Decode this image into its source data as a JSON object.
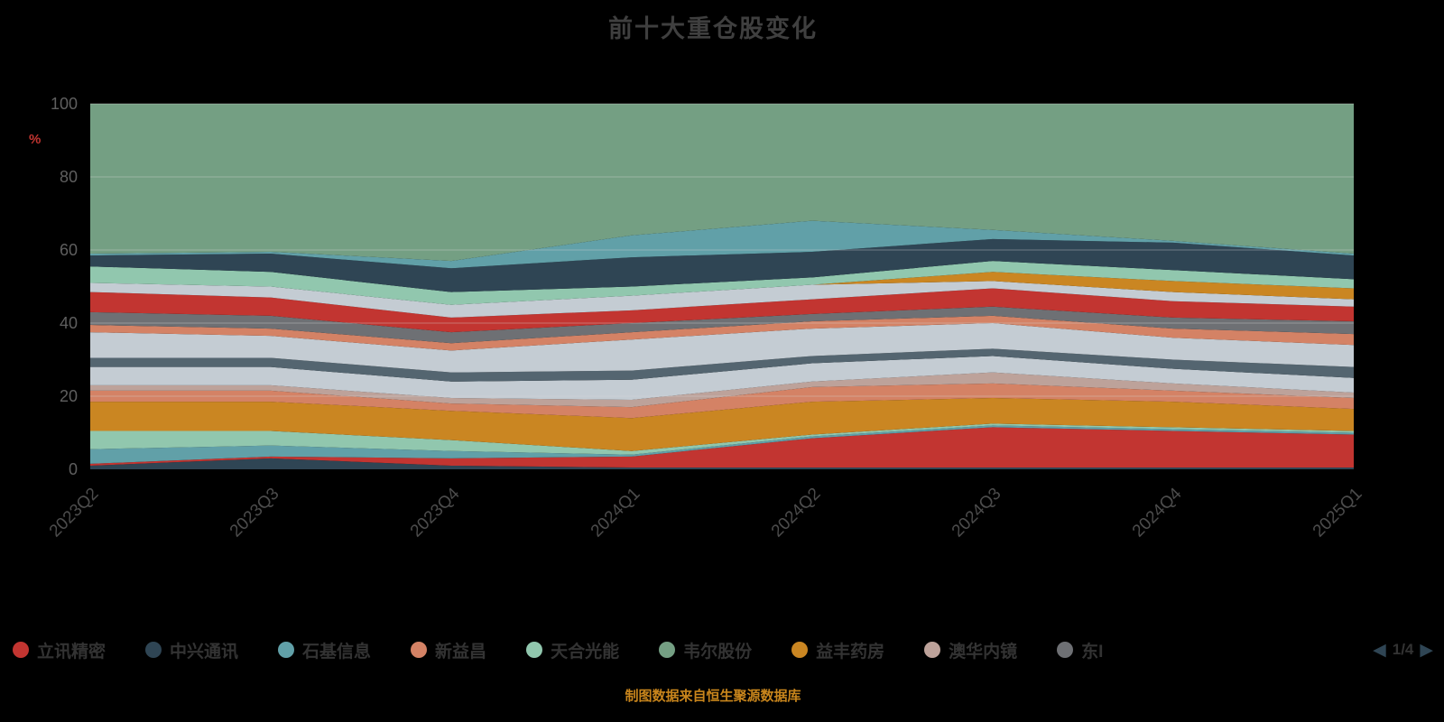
{
  "title": "前十大重仓股变化",
  "footer": "制图数据来自恒生聚源数据库",
  "y_axis": {
    "unit_label": "%",
    "ticks": [
      0,
      20,
      40,
      60,
      80,
      100
    ],
    "min": 0,
    "max": 100
  },
  "legend": {
    "items": [
      {
        "label": "立讯精密",
        "color": "#c23531"
      },
      {
        "label": "中兴通讯",
        "color": "#2f4554"
      },
      {
        "label": "石基信息",
        "color": "#61a0a8"
      },
      {
        "label": "新益昌",
        "color": "#d48265"
      },
      {
        "label": "天合光能",
        "color": "#91c7ae"
      },
      {
        "label": "韦尔股份",
        "color": "#749f83"
      },
      {
        "label": "益丰药房",
        "color": "#ca8622"
      },
      {
        "label": "澳华内镜",
        "color": "#bda29a"
      },
      {
        "label": "东I",
        "color": "#6e7074"
      }
    ],
    "pager": {
      "prev_icon": "◀",
      "current_page": "1/4",
      "next_icon": "▶"
    }
  },
  "chart_data": {
    "type": "area",
    "stacked": true,
    "title": "前十大重仓股变化",
    "xlabel": "",
    "ylabel": "%",
    "ylim": [
      0,
      100
    ],
    "grid": true,
    "legend_position": "bottom",
    "x": [
      "2023Q2",
      "2023Q3",
      "2023Q4",
      "2024Q1",
      "2024Q2",
      "2024Q3",
      "2024Q4",
      "2025Q1"
    ],
    "series": [
      {
        "id": "s01",
        "name": "中兴通讯",
        "color": "#2f4554",
        "values": [
          1,
          3,
          1,
          0.5,
          0.5,
          0.5,
          0.5,
          0.5
        ]
      },
      {
        "id": "s02",
        "name": "立讯精密",
        "color": "#c23531",
        "values": [
          0.5,
          0.5,
          2,
          3,
          8,
          11,
          10,
          9
        ]
      },
      {
        "id": "s03",
        "name": "石基信息",
        "color": "#61a0a8",
        "values": [
          4,
          3,
          2,
          0.5,
          0.5,
          0.5,
          0.5,
          0.5
        ]
      },
      {
        "id": "s04",
        "name": "天合光能",
        "color": "#91c7ae",
        "values": [
          5,
          4,
          3,
          1,
          0.5,
          0.5,
          0.5,
          0.5
        ]
      },
      {
        "id": "s05",
        "name": "益丰药房",
        "color": "#ca8622",
        "values": [
          8,
          8,
          8,
          9,
          9,
          7,
          7,
          6
        ]
      },
      {
        "id": "s06",
        "name": "新益昌",
        "color": "#d48265",
        "values": [
          3,
          3,
          2,
          3,
          4,
          4,
          3,
          3
        ]
      },
      {
        "id": "s07",
        "name": "澳华内镜",
        "color": "#bda29a",
        "values": [
          1.5,
          1.5,
          1.5,
          2,
          1.5,
          3,
          2,
          1.5
        ]
      },
      {
        "id": "s08",
        "name": "",
        "color": "#c4ccd3",
        "values": [
          5,
          5,
          4.5,
          5.5,
          5,
          4.5,
          4,
          4
        ]
      },
      {
        "id": "s09",
        "name": "",
        "color": "#546570",
        "values": [
          2.5,
          2.5,
          2.5,
          2.5,
          2,
          2,
          2.5,
          3
        ]
      },
      {
        "id": "s10",
        "name": "",
        "color": "#c4ccd3",
        "values": [
          7,
          6,
          6,
          8.5,
          7.5,
          7,
          6,
          6
        ]
      },
      {
        "id": "s11",
        "name": "",
        "color": "#d48265",
        "values": [
          2,
          2,
          2,
          2,
          2,
          2,
          2.5,
          3
        ]
      },
      {
        "id": "s12",
        "name": "东I",
        "color": "#6e7074",
        "values": [
          3.5,
          3.5,
          3,
          2.5,
          2,
          2.5,
          3,
          3.5
        ]
      },
      {
        "id": "s13",
        "name": "",
        "color": "#c23531",
        "values": [
          5.5,
          5,
          4,
          3.5,
          4,
          5,
          4.5,
          4
        ]
      },
      {
        "id": "s14",
        "name": "",
        "color": "#c4ccd3",
        "values": [
          2.5,
          3,
          3.5,
          4,
          4,
          2,
          2.5,
          2
        ]
      },
      {
        "id": "s15",
        "name": "",
        "color": "#ca8622",
        "values": [
          0,
          0,
          0,
          0,
          0,
          2.5,
          3,
          3
        ]
      },
      {
        "id": "s16",
        "name": "",
        "color": "#91c7ae",
        "values": [
          4.5,
          4,
          3.5,
          2.5,
          2,
          3,
          3,
          2.5
        ]
      },
      {
        "id": "s17",
        "name": "",
        "color": "#2f4554",
        "values": [
          3,
          5,
          6.5,
          8,
          7,
          6,
          7.5,
          6.5
        ]
      },
      {
        "id": "s18",
        "name": "",
        "color": "#61a0a8",
        "values": [
          0.5,
          0.5,
          2,
          6,
          8.5,
          2.5,
          0.5,
          0.5
        ]
      },
      {
        "id": "s19",
        "name": "韦尔股份",
        "color": "#749f83",
        "values": [
          41,
          40.5,
          43,
          36,
          32,
          34.5,
          37.5,
          41
        ]
      }
    ]
  }
}
